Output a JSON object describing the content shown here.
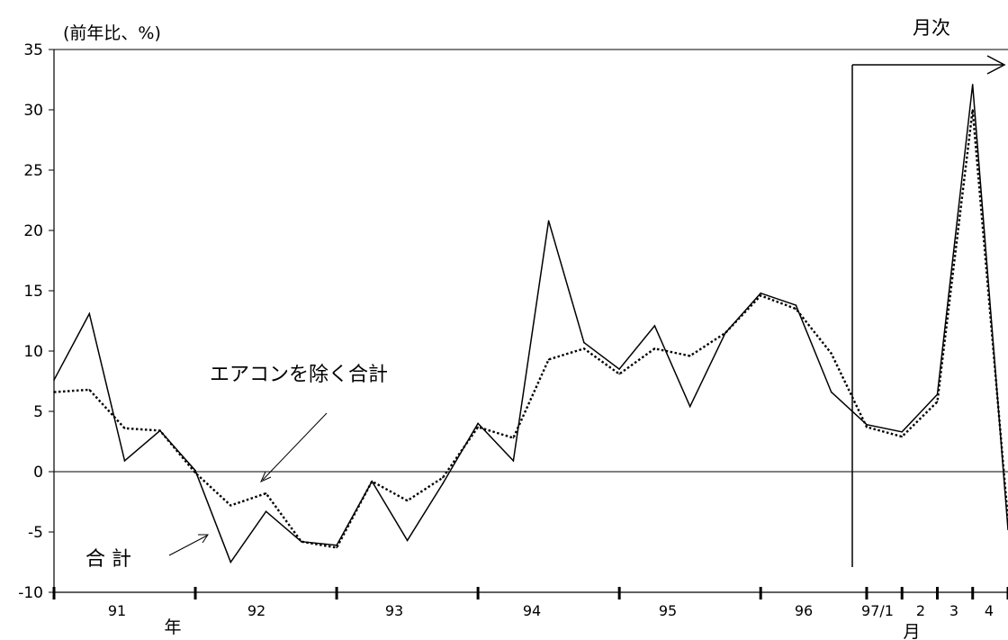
{
  "chart_data": {
    "type": "line",
    "ylabel": "(前年比、%)",
    "ylim": [
      -10,
      35
    ],
    "y_ticks": [
      "35",
      "30",
      "25",
      "20",
      "15",
      "10",
      "5",
      "0",
      "-5",
      "-10"
    ],
    "grid": false,
    "x_tick_labels": [
      "91",
      "92",
      "93",
      "94",
      "95",
      "96",
      "97/1",
      "2",
      "3",
      "4"
    ],
    "x_unit_year": "年",
    "x_unit_month": "月",
    "monthly_label": "月次",
    "series": [
      {
        "name": "合 計",
        "style": "solid",
        "values": [
          7.6,
          13.1,
          0.9,
          3.4,
          0.1,
          -7.5,
          -3.3,
          -5.8,
          -6.1,
          -0.8,
          -5.7,
          -1.0,
          4.0,
          0.9,
          20.8,
          10.7,
          8.5,
          12.1,
          5.4,
          11.5,
          14.8,
          13.8,
          6.6,
          3.9,
          3.3,
          6.4,
          32.1,
          -4.8
        ]
      },
      {
        "name": "エアコンを除く合計",
        "style": "dotted",
        "values": [
          6.6,
          6.8,
          3.6,
          3.4,
          -0.1,
          -2.8,
          -1.8,
          -5.8,
          -6.3,
          -0.8,
          -2.4,
          -0.5,
          3.7,
          2.8,
          9.3,
          10.2,
          8.1,
          10.2,
          9.6,
          11.5,
          14.6,
          13.5,
          9.8,
          3.7,
          2.9,
          5.8,
          30.0,
          -4.0
        ]
      }
    ]
  }
}
